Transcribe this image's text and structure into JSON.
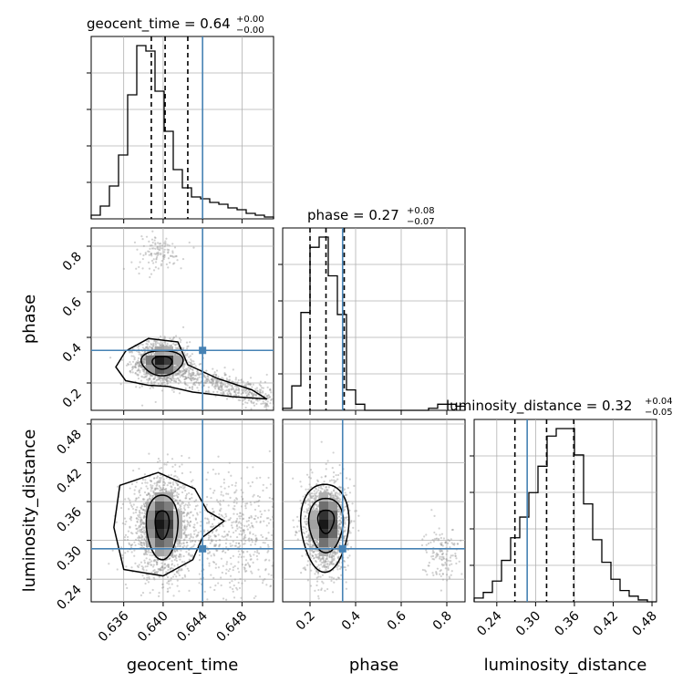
{
  "chart_data": {
    "type": "corner",
    "colors": {
      "truth": "#4682b4",
      "hist": "#000000",
      "grid": "#b0b0b0",
      "points": "#9a9a9a"
    },
    "parameters": [
      {
        "name": "geocent_time",
        "range": [
          0.6327,
          0.6512
        ],
        "ticks": [
          0.636,
          0.64,
          0.644,
          0.648
        ],
        "tick_labels": [
          "0.636",
          "0.640",
          "0.644",
          "0.648"
        ],
        "truth": 0.644,
        "title": {
          "text": "geocent_time = 0.64",
          "plus": "+0.00",
          "minus": "−0.00"
        },
        "quantiles": [
          0.6388,
          0.6402,
          0.6425
        ]
      },
      {
        "name": "phase",
        "range": [
          0.08,
          0.88
        ],
        "ticks": [
          0.2,
          0.4,
          0.6,
          0.8
        ],
        "tick_labels": [
          "0.2",
          "0.4",
          "0.6",
          "0.8"
        ],
        "truth": 0.343,
        "title": {
          "text": "phase = 0.27",
          "plus": "+0.08",
          "minus": "−0.07"
        },
        "quantiles": [
          0.2,
          0.27,
          0.35
        ]
      },
      {
        "name": "luminosity_distance",
        "range": [
          0.205,
          0.487
        ],
        "ticks": [
          0.24,
          0.3,
          0.36,
          0.42,
          0.48
        ],
        "tick_labels": [
          "0.24",
          "0.30",
          "0.36",
          "0.42",
          "0.48"
        ],
        "truth": 0.287,
        "title": {
          "text": "luminosity_distance = 0.32",
          "plus": "+0.04",
          "minus": "−0.05"
        },
        "quantiles": [
          0.268,
          0.317,
          0.359
        ]
      }
    ],
    "marginals": [
      {
        "param": 0,
        "bins": 20,
        "values": [
          0.02,
          0.07,
          0.18,
          0.35,
          0.68,
          0.95,
          0.92,
          0.7,
          0.48,
          0.27,
          0.17,
          0.12,
          0.11,
          0.09,
          0.08,
          0.06,
          0.05,
          0.03,
          0.02,
          0.01
        ]
      },
      {
        "param": 1,
        "bins": 20,
        "values": [
          0.01,
          0.12,
          0.48,
          0.8,
          0.85,
          0.66,
          0.47,
          0.1,
          0.03,
          0.0,
          0.0,
          0.0,
          0.0,
          0.0,
          0.0,
          0.0,
          0.01,
          0.03,
          0.03,
          0.02
        ]
      },
      {
        "param": 2,
        "bins": 20,
        "values": [
          0.02,
          0.05,
          0.11,
          0.22,
          0.34,
          0.45,
          0.58,
          0.72,
          0.88,
          0.92,
          0.92,
          0.78,
          0.52,
          0.33,
          0.21,
          0.12,
          0.06,
          0.03,
          0.01,
          0.0
        ]
      }
    ],
    "joint_2d": [
      {
        "x": 0,
        "y": 1,
        "peak": [
          0.6398,
          0.29
        ]
      },
      {
        "x": 0,
        "y": 2,
        "peak": [
          0.6399,
          0.325
        ]
      },
      {
        "x": 1,
        "y": 2,
        "peak": [
          0.27,
          0.325
        ]
      }
    ],
    "grid": true
  }
}
